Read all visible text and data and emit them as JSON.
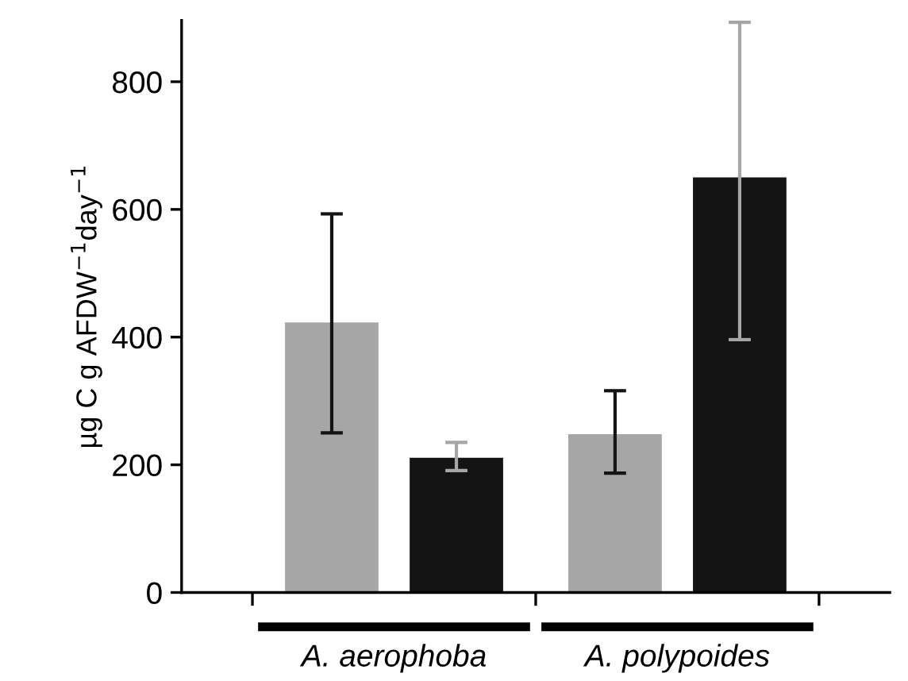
{
  "chart_data": {
    "type": "bar",
    "ylabel": "µg C g AFDW$^{−1}$day$^{−1}$",
    "categories": [
      "A. aerophoba",
      "A. polypoides"
    ],
    "series": [
      {
        "color": "#a6a6a6",
        "values": [
          423,
          248
        ],
        "errors": [
          [
            250,
            593
          ],
          [
            187,
            316
          ]
        ]
      },
      {
        "color": "#141414",
        "values": [
          211,
          650
        ],
        "errors": [
          [
            191,
            235
          ],
          [
            396,
            893
          ]
        ]
      }
    ],
    "ylim": [
      0,
      896
    ],
    "yticks": [
      0,
      200,
      400,
      600,
      800
    ],
    "grid": false,
    "legend": false
  }
}
